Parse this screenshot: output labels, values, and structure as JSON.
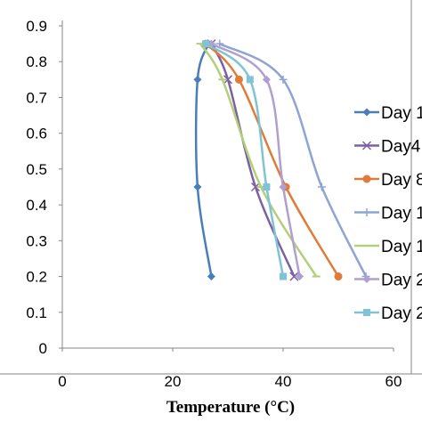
{
  "chart_data": {
    "type": "scatter",
    "xlabel": "Temperature (°C)",
    "ylabel": "",
    "xlim": [
      0,
      60
    ],
    "ylim": [
      0,
      0.9
    ],
    "xticks": [
      0,
      20,
      40,
      60
    ],
    "yticks": [
      0,
      0.1,
      0.2,
      0.3,
      0.4,
      0.5,
      0.6,
      0.7,
      0.8,
      0.9
    ],
    "ytick_labels": [
      "0",
      "0.1",
      "0.2",
      "0.3",
      "0.4",
      "0.5",
      "0.6",
      "0.7",
      "0.8",
      "0.9"
    ],
    "grid": false,
    "legend_position": "right",
    "smooth_lines": true,
    "series": [
      {
        "name": "Day 1",
        "color": "#4a7ebb",
        "marker": "diamond",
        "points": [
          [
            26.5,
            0.85
          ],
          [
            24.5,
            0.75
          ],
          [
            24.5,
            0.45
          ],
          [
            27,
            0.2
          ]
        ]
      },
      {
        "name": "Day4",
        "color": "#7d60a0",
        "marker": "x",
        "points": [
          [
            27,
            0.85
          ],
          [
            30,
            0.75
          ],
          [
            35,
            0.45
          ],
          [
            42,
            0.2
          ]
        ]
      },
      {
        "name": "Day 8",
        "color": "#e07b39",
        "marker": "circle",
        "points": [
          [
            26,
            0.85
          ],
          [
            32,
            0.75
          ],
          [
            40.5,
            0.45
          ],
          [
            50,
            0.2
          ]
        ]
      },
      {
        "name": "Day 1",
        "color": "#8ea5d2",
        "marker": "plus",
        "points": [
          [
            28.5,
            0.85
          ],
          [
            40,
            0.75
          ],
          [
            47,
            0.45
          ],
          [
            55,
            0.2
          ]
        ]
      },
      {
        "name": "Day 1",
        "color": "#b4cf7a",
        "marker": "dash",
        "points": [
          [
            25,
            0.85
          ],
          [
            29,
            0.75
          ],
          [
            36,
            0.45
          ],
          [
            46,
            0.2
          ]
        ]
      },
      {
        "name": "Day 2",
        "color": "#b09fd1",
        "marker": "diamond",
        "points": [
          [
            27,
            0.85
          ],
          [
            37,
            0.75
          ],
          [
            40,
            0.45
          ],
          [
            43,
            0.2
          ]
        ]
      },
      {
        "name": "Day 2",
        "color": "#7fc3d6",
        "marker": "square",
        "points": [
          [
            26,
            0.85
          ],
          [
            34,
            0.75
          ],
          [
            37,
            0.45
          ],
          [
            40,
            0.2
          ]
        ]
      }
    ]
  }
}
